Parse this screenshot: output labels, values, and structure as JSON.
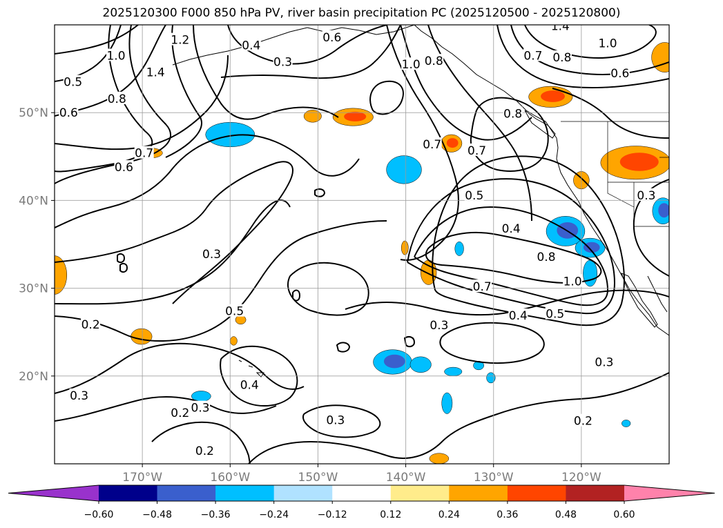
{
  "title": "2025120300 F000 850 hPa PV, river basin precipitation PC (2025120500 - 2025120800)",
  "map": {
    "projection": "Plate Carree",
    "lon_range": [
      -180,
      -110
    ],
    "lat_range": [
      10,
      60
    ],
    "lon_ticks": [
      {
        "lon": -170,
        "label": "170°W"
      },
      {
        "lon": -160,
        "label": "160°W"
      },
      {
        "lon": -150,
        "label": "150°W"
      },
      {
        "lon": -140,
        "label": "140°W"
      },
      {
        "lon": -130,
        "label": "130°W"
      },
      {
        "lon": -120,
        "label": "120°W"
      }
    ],
    "lat_ticks": [
      {
        "lat": 50,
        "label": "50°N"
      },
      {
        "lat": 40,
        "label": "40°N"
      },
      {
        "lat": 30,
        "label": "30°N"
      },
      {
        "lat": 20,
        "label": "20°N"
      }
    ]
  },
  "pv_contour_labels": [
    {
      "text": "0.3",
      "lon": -154.0,
      "lat": 55.8
    },
    {
      "text": "0.4",
      "lon": -157.6,
      "lat": 57.7
    },
    {
      "text": "0.6",
      "lon": -148.4,
      "lat": 58.6
    },
    {
      "text": "1.0",
      "lon": -173.0,
      "lat": 56.5
    },
    {
      "text": "1.2",
      "lon": -165.7,
      "lat": 58.3
    },
    {
      "text": "1.4",
      "lon": -168.5,
      "lat": 54.6
    },
    {
      "text": "0.5",
      "lon": -177.9,
      "lat": 53.5
    },
    {
      "text": "0.8",
      "lon": -172.9,
      "lat": 51.6
    },
    {
      "text": "0.6",
      "lon": -178.4,
      "lat": 50.0
    },
    {
      "text": "0.7",
      "lon": -169.8,
      "lat": 45.4
    },
    {
      "text": "0.6",
      "lon": -172.1,
      "lat": 43.8
    },
    {
      "text": "1.0",
      "lon": -139.4,
      "lat": 55.5
    },
    {
      "text": "0.8",
      "lon": -136.8,
      "lat": 55.9
    },
    {
      "text": "1.4",
      "lon": -122.4,
      "lat": 59.9
    },
    {
      "text": "1.0",
      "lon": -117.0,
      "lat": 57.9
    },
    {
      "text": "0.7",
      "lon": -125.5,
      "lat": 56.5
    },
    {
      "text": "0.8",
      "lon": -122.2,
      "lat": 56.3
    },
    {
      "text": "0.6",
      "lon": -115.6,
      "lat": 54.5
    },
    {
      "text": "0.8",
      "lon": -127.8,
      "lat": 49.9
    },
    {
      "text": "0.7",
      "lon": -137.0,
      "lat": 46.4
    },
    {
      "text": "0.7",
      "lon": -131.9,
      "lat": 45.7
    },
    {
      "text": "0.5",
      "lon": -132.2,
      "lat": 40.6
    },
    {
      "text": "0.4",
      "lon": -128.0,
      "lat": 36.8
    },
    {
      "text": "0.3",
      "lon": -112.6,
      "lat": 40.6
    },
    {
      "text": "0.8",
      "lon": -124.0,
      "lat": 33.6
    },
    {
      "text": "1.0",
      "lon": -121.0,
      "lat": 30.8
    },
    {
      "text": "0.7",
      "lon": -131.3,
      "lat": 30.2
    },
    {
      "text": "0.4",
      "lon": -127.2,
      "lat": 26.9
    },
    {
      "text": "0.5",
      "lon": -123.0,
      "lat": 27.1
    },
    {
      "text": "0.3",
      "lon": -162.1,
      "lat": 33.9
    },
    {
      "text": "0.5",
      "lon": -159.5,
      "lat": 27.4
    },
    {
      "text": "0.3",
      "lon": -136.2,
      "lat": 25.8
    },
    {
      "text": "0.2",
      "lon": -175.9,
      "lat": 25.9
    },
    {
      "text": "0.3",
      "lon": -117.4,
      "lat": 21.6
    },
    {
      "text": "0.4",
      "lon": -157.8,
      "lat": 19.0
    },
    {
      "text": "0.3",
      "lon": -177.2,
      "lat": 17.8
    },
    {
      "text": "0.2",
      "lon": -165.7,
      "lat": 15.8
    },
    {
      "text": "0.3",
      "lon": -163.4,
      "lat": 16.4
    },
    {
      "text": "0.3",
      "lon": -148.0,
      "lat": 15.0
    },
    {
      "text": "0.2",
      "lon": -119.8,
      "lat": 14.9
    },
    {
      "text": "0.2",
      "lon": -162.9,
      "lat": 11.5
    }
  ],
  "precip_regions": [
    {
      "lon": -160.0,
      "lat": 47.5,
      "size": [
        2.8,
        1.4
      ],
      "fill": "#00bfff",
      "inner": null
    },
    {
      "lon": -146.0,
      "lat": 49.5,
      "size": [
        2.3,
        1.0
      ],
      "fill": "#ffa500",
      "inner": "#ff4500"
    },
    {
      "lon": -150.6,
      "lat": 49.6,
      "size": [
        1.0,
        0.7
      ],
      "fill": "#ffa500",
      "inner": null
    },
    {
      "lon": -169.3,
      "lat": 45.4,
      "size": [
        1.6,
        0.6
      ],
      "fill": "#ffa500",
      "inner": null
    },
    {
      "lon": -180.0,
      "lat": 31.5,
      "size": [
        1.4,
        2.2
      ],
      "fill": "#ffa500",
      "inner": null
    },
    {
      "lon": -140.2,
      "lat": 43.5,
      "size": [
        2.0,
        1.6
      ],
      "fill": "#00bfff",
      "inner": null
    },
    {
      "lon": -134.8,
      "lat": 46.5,
      "size": [
        1.2,
        1.0
      ],
      "fill": "#ffa500",
      "inner": "#ff4500"
    },
    {
      "lon": -123.5,
      "lat": 51.8,
      "size": [
        2.5,
        1.2
      ],
      "fill": "#ffa500",
      "inner": "#ff4500"
    },
    {
      "lon": -113.8,
      "lat": 44.3,
      "size": [
        4.0,
        1.9
      ],
      "fill": "#ffa500",
      "inner": "#ff4500"
    },
    {
      "lon": -110.5,
      "lat": 56.3,
      "size": [
        1.5,
        1.7
      ],
      "fill": "#ffa500",
      "inner": null
    },
    {
      "lon": -120.0,
      "lat": 42.3,
      "size": [
        0.9,
        1.0
      ],
      "fill": "#ffa500",
      "inner": null
    },
    {
      "lon": -110.7,
      "lat": 38.8,
      "size": [
        1.2,
        1.5
      ],
      "fill": "#00bfff",
      "inner": "#3a5fcd"
    },
    {
      "lon": -121.8,
      "lat": 36.5,
      "size": [
        2.2,
        1.7
      ],
      "fill": "#00bfff",
      "inner": "#3a5fcd"
    },
    {
      "lon": -119.0,
      "lat": 34.6,
      "size": [
        1.7,
        1.1
      ],
      "fill": "#00bfff",
      "inner": "#3a5fcd"
    },
    {
      "lon": -119.0,
      "lat": 31.7,
      "size": [
        0.8,
        1.5
      ],
      "fill": "#00bfff",
      "inner": null
    },
    {
      "lon": -137.4,
      "lat": 31.8,
      "size": [
        0.9,
        1.4
      ],
      "fill": "#ffa500",
      "inner": null
    },
    {
      "lon": -133.9,
      "lat": 34.5,
      "size": [
        0.5,
        0.8
      ],
      "fill": "#00bfff",
      "inner": null
    },
    {
      "lon": -140.1,
      "lat": 34.6,
      "size": [
        0.4,
        0.8
      ],
      "fill": "#ffa500",
      "inner": null
    },
    {
      "lon": -141.5,
      "lat": 21.6,
      "size": [
        2.2,
        1.4
      ],
      "fill": "#00bfff",
      "inner": "#3a5fcd"
    },
    {
      "lon": -138.3,
      "lat": 21.3,
      "size": [
        1.2,
        0.9
      ],
      "fill": "#00bfff",
      "inner": null
    },
    {
      "lon": -134.6,
      "lat": 20.5,
      "size": [
        1.0,
        0.5
      ],
      "fill": "#00bfff",
      "inner": null
    },
    {
      "lon": -131.7,
      "lat": 21.2,
      "size": [
        0.6,
        0.5
      ],
      "fill": "#00bfff",
      "inner": null
    },
    {
      "lon": -130.3,
      "lat": 19.8,
      "size": [
        0.5,
        0.6
      ],
      "fill": "#00bfff",
      "inner": null
    },
    {
      "lon": -135.3,
      "lat": 16.9,
      "size": [
        0.6,
        1.2
      ],
      "fill": "#00bfff",
      "inner": null
    },
    {
      "lon": -163.3,
      "lat": 17.7,
      "size": [
        1.1,
        0.6
      ],
      "fill": "#00bfff",
      "inner": null
    },
    {
      "lon": -170.1,
      "lat": 24.5,
      "size": [
        1.2,
        0.9
      ],
      "fill": "#ffa500",
      "inner": null
    },
    {
      "lon": -158.8,
      "lat": 26.4,
      "size": [
        0.6,
        0.5
      ],
      "fill": "#ffa500",
      "inner": null
    },
    {
      "lon": -136.2,
      "lat": 10.6,
      "size": [
        1.1,
        0.6
      ],
      "fill": "#ffa500",
      "inner": null
    },
    {
      "lon": -114.9,
      "lat": 14.6,
      "size": [
        0.5,
        0.4
      ],
      "fill": "#00bfff",
      "inner": null
    },
    {
      "lon": -159.6,
      "lat": 24.0,
      "size": [
        0.4,
        0.5
      ],
      "fill": "#ffa500",
      "inner": null
    }
  ],
  "colorbar": {
    "colors": [
      "#9932cc",
      "#00008b",
      "#3a5fcd",
      "#00bfff",
      "#b0e2ff",
      "#ffffff",
      "#ffec8b",
      "#ffa500",
      "#ff4500",
      "#b22222",
      "#ff82ab"
    ],
    "tick_labels": [
      "−0.60",
      "−0.48",
      "−0.36",
      "−0.24",
      "−0.12",
      "0.12",
      "0.24",
      "0.36",
      "0.48",
      "0.60"
    ]
  }
}
